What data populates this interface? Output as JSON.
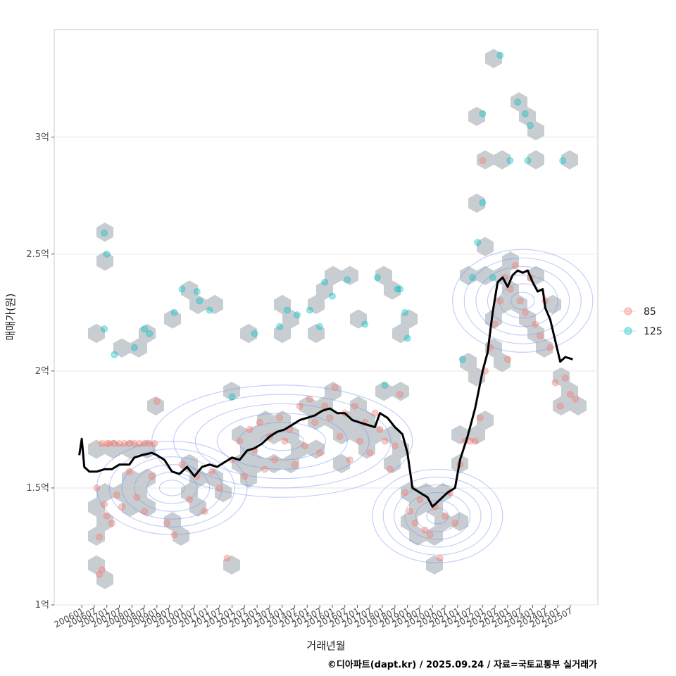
{
  "chart_data": {
    "type": "scatter",
    "xlabel": "거래년월",
    "ylabel": "매매가(원)",
    "caption": "©디아파트(dapt.kr) / 2025.09.24 / 자료=국토교통부 실거래가",
    "x_ticks": [
      "200601",
      "200607",
      "200701",
      "200707",
      "200801",
      "200807",
      "200901",
      "200907",
      "201001",
      "201007",
      "201101",
      "201107",
      "201201",
      "201207",
      "201301",
      "201307",
      "201401",
      "201407",
      "201501",
      "201507",
      "201601",
      "201607",
      "201701",
      "201707",
      "201801",
      "201807",
      "201901",
      "201907",
      "202001",
      "202007",
      "202101",
      "202107",
      "202201",
      "202207",
      "202301",
      "202307",
      "202401",
      "202407",
      "202501",
      "202507"
    ],
    "y_ticks": [
      {
        "value": 1.0,
        "label": "1억"
      },
      {
        "value": 1.5,
        "label": "1.5억"
      },
      {
        "value": 2.0,
        "label": "2억"
      },
      {
        "value": 2.5,
        "label": "2.5억"
      },
      {
        "value": 3.0,
        "label": "3억"
      }
    ],
    "ylim": [
      1.0,
      3.46
    ],
    "xlim": [
      2004.9,
      2026.6
    ],
    "legend": {
      "position": "right",
      "entries": [
        {
          "label": "85",
          "color": "#F8766D"
        },
        {
          "label": "125",
          "color": "#00BFC4"
        }
      ]
    },
    "series": [
      {
        "name": "85",
        "color": "#F8766D",
        "points": [
          [
            2006.8,
            1.69
          ],
          [
            2007.0,
            1.69
          ],
          [
            2007.1,
            1.69
          ],
          [
            2007.3,
            1.69
          ],
          [
            2007.5,
            1.69
          ],
          [
            2007.7,
            1.69
          ],
          [
            2007.9,
            1.69
          ],
          [
            2008.1,
            1.69
          ],
          [
            2008.3,
            1.69
          ],
          [
            2008.5,
            1.69
          ],
          [
            2008.7,
            1.69
          ],
          [
            2008.9,
            1.69
          ],
          [
            2006.6,
            1.5
          ],
          [
            2006.9,
            1.43
          ],
          [
            2007.2,
            1.35
          ],
          [
            2007.4,
            1.47
          ],
          [
            2007.6,
            1.42
          ],
          [
            2007.9,
            1.57
          ],
          [
            2008.2,
            1.46
          ],
          [
            2008.5,
            1.4
          ],
          [
            2008.8,
            1.55
          ],
          [
            2009.0,
            1.87
          ],
          [
            2009.4,
            1.35
          ],
          [
            2006.7,
            1.29
          ],
          [
            2006.8,
            1.15
          ],
          [
            2006.7,
            1.13
          ],
          [
            2007.0,
            1.38
          ],
          [
            2009.7,
            1.3
          ],
          [
            2010.0,
            1.6
          ],
          [
            2010.3,
            1.45
          ],
          [
            2010.6,
            1.55
          ],
          [
            2010.9,
            1.4
          ],
          [
            2011.2,
            1.57
          ],
          [
            2011.5,
            1.5
          ],
          [
            2011.8,
            1.2
          ],
          [
            2012.0,
            1.62
          ],
          [
            2012.3,
            1.7
          ],
          [
            2012.5,
            1.55
          ],
          [
            2012.7,
            1.75
          ],
          [
            2012.9,
            1.66
          ],
          [
            2013.1,
            1.78
          ],
          [
            2013.3,
            1.58
          ],
          [
            2013.5,
            1.72
          ],
          [
            2013.7,
            1.62
          ],
          [
            2013.9,
            1.8
          ],
          [
            2014.1,
            1.7
          ],
          [
            2014.3,
            1.75
          ],
          [
            2014.5,
            1.6
          ],
          [
            2014.7,
            1.85
          ],
          [
            2014.9,
            1.68
          ],
          [
            2015.1,
            1.88
          ],
          [
            2015.3,
            1.78
          ],
          [
            2015.5,
            1.65
          ],
          [
            2015.7,
            1.85
          ],
          [
            2015.9,
            1.8
          ],
          [
            2016.1,
            1.93
          ],
          [
            2016.3,
            1.72
          ],
          [
            2016.5,
            1.82
          ],
          [
            2016.7,
            1.62
          ],
          [
            2016.9,
            1.85
          ],
          [
            2017.1,
            1.7
          ],
          [
            2017.3,
            1.78
          ],
          [
            2017.5,
            1.65
          ],
          [
            2017.7,
            1.82
          ],
          [
            2017.9,
            1.75
          ],
          [
            2018.1,
            1.7
          ],
          [
            2018.3,
            1.58
          ],
          [
            2018.5,
            1.68
          ],
          [
            2018.7,
            1.9
          ],
          [
            2018.9,
            1.48
          ],
          [
            2019.1,
            1.4
          ],
          [
            2019.3,
            1.35
          ],
          [
            2019.5,
            1.45
          ],
          [
            2019.7,
            1.32
          ],
          [
            2019.9,
            1.3
          ],
          [
            2020.1,
            1.42
          ],
          [
            2020.3,
            1.2
          ],
          [
            2020.5,
            1.38
          ],
          [
            2020.7,
            1.48
          ],
          [
            2020.9,
            1.35
          ],
          [
            2021.1,
            1.6
          ],
          [
            2021.3,
            1.7
          ],
          [
            2021.5,
            1.7
          ],
          [
            2021.7,
            1.7
          ],
          [
            2021.9,
            1.8
          ],
          [
            2022.1,
            2.0
          ],
          [
            2022.3,
            2.1
          ],
          [
            2022.5,
            2.2
          ],
          [
            2022.7,
            2.3
          ],
          [
            2022.9,
            2.4
          ],
          [
            2023.1,
            2.35
          ],
          [
            2023.3,
            2.45
          ],
          [
            2023.5,
            2.3
          ],
          [
            2023.7,
            2.25
          ],
          [
            2023.9,
            2.4
          ],
          [
            2024.1,
            2.2
          ],
          [
            2024.3,
            2.15
          ],
          [
            2024.5,
            2.3
          ],
          [
            2024.7,
            2.1
          ],
          [
            2024.9,
            1.95
          ],
          [
            2025.1,
            1.85
          ],
          [
            2025.3,
            1.97
          ],
          [
            2025.5,
            1.9
          ],
          [
            2022.0,
            2.9
          ],
          [
            2023.0,
            2.05
          ],
          [
            2025.7,
            1.88
          ]
        ]
      },
      {
        "name": "125",
        "color": "#00BFC4",
        "points": [
          [
            2006.9,
            2.59
          ],
          [
            2007.0,
            2.5
          ],
          [
            2006.9,
            2.18
          ],
          [
            2007.3,
            2.07
          ],
          [
            2008.1,
            2.1
          ],
          [
            2008.5,
            2.18
          ],
          [
            2008.7,
            2.16
          ],
          [
            2009.7,
            2.25
          ],
          [
            2010.0,
            2.35
          ],
          [
            2010.6,
            2.34
          ],
          [
            2010.7,
            2.3
          ],
          [
            2011.1,
            2.26
          ],
          [
            2012.0,
            1.89
          ],
          [
            2012.9,
            2.16
          ],
          [
            2013.9,
            2.19
          ],
          [
            2014.2,
            2.26
          ],
          [
            2014.6,
            2.24
          ],
          [
            2015.1,
            2.26
          ],
          [
            2015.5,
            2.19
          ],
          [
            2015.7,
            2.38
          ],
          [
            2016.0,
            2.32
          ],
          [
            2016.6,
            2.39
          ],
          [
            2017.3,
            2.2
          ],
          [
            2017.8,
            2.4
          ],
          [
            2018.1,
            1.94
          ],
          [
            2018.6,
            2.35
          ],
          [
            2018.7,
            2.35
          ],
          [
            2018.9,
            2.25
          ],
          [
            2019.0,
            2.14
          ],
          [
            2021.2,
            2.05
          ],
          [
            2021.6,
            2.4
          ],
          [
            2021.8,
            2.55
          ],
          [
            2022.0,
            2.72
          ],
          [
            2022.0,
            3.1
          ],
          [
            2022.4,
            2.4
          ],
          [
            2022.7,
            3.35
          ],
          [
            2023.1,
            2.9
          ],
          [
            2023.4,
            3.15
          ],
          [
            2023.7,
            3.1
          ],
          [
            2023.8,
            2.9
          ],
          [
            2023.9,
            3.05
          ],
          [
            2025.2,
            2.9
          ]
        ]
      }
    ],
    "trend_line": {
      "name": "moving average",
      "color": "#000000",
      "points": [
        [
          2005.9,
          1.64
        ],
        [
          2006.0,
          1.71
        ],
        [
          2006.1,
          1.59
        ],
        [
          2006.3,
          1.57
        ],
        [
          2006.6,
          1.57
        ],
        [
          2006.9,
          1.58
        ],
        [
          2007.2,
          1.58
        ],
        [
          2007.5,
          1.6
        ],
        [
          2007.9,
          1.6
        ],
        [
          2008.1,
          1.63
        ],
        [
          2008.4,
          1.64
        ],
        [
          2008.8,
          1.65
        ],
        [
          2009.0,
          1.64
        ],
        [
          2009.3,
          1.62
        ],
        [
          2009.6,
          1.57
        ],
        [
          2009.9,
          1.56
        ],
        [
          2010.2,
          1.59
        ],
        [
          2010.5,
          1.55
        ],
        [
          2010.8,
          1.59
        ],
        [
          2011.1,
          1.6
        ],
        [
          2011.4,
          1.59
        ],
        [
          2011.7,
          1.61
        ],
        [
          2012.0,
          1.63
        ],
        [
          2012.3,
          1.62
        ],
        [
          2012.6,
          1.66
        ],
        [
          2012.9,
          1.67
        ],
        [
          2013.2,
          1.69
        ],
        [
          2013.5,
          1.72
        ],
        [
          2013.8,
          1.74
        ],
        [
          2014.1,
          1.75
        ],
        [
          2014.4,
          1.77
        ],
        [
          2014.7,
          1.79
        ],
        [
          2015.0,
          1.8
        ],
        [
          2015.3,
          1.81
        ],
        [
          2015.6,
          1.83
        ],
        [
          2015.9,
          1.84
        ],
        [
          2016.2,
          1.82
        ],
        [
          2016.5,
          1.82
        ],
        [
          2016.8,
          1.79
        ],
        [
          2017.1,
          1.78
        ],
        [
          2017.4,
          1.77
        ],
        [
          2017.7,
          1.76
        ],
        [
          2017.9,
          1.82
        ],
        [
          2018.2,
          1.8
        ],
        [
          2018.5,
          1.76
        ],
        [
          2018.8,
          1.73
        ],
        [
          2019.0,
          1.65
        ],
        [
          2019.2,
          1.5
        ],
        [
          2019.5,
          1.48
        ],
        [
          2019.8,
          1.46
        ],
        [
          2020.0,
          1.42
        ],
        [
          2020.3,
          1.45
        ],
        [
          2020.6,
          1.48
        ],
        [
          2020.9,
          1.5
        ],
        [
          2021.1,
          1.62
        ],
        [
          2021.4,
          1.72
        ],
        [
          2021.7,
          1.84
        ],
        [
          2022.0,
          2.0
        ],
        [
          2022.2,
          2.08
        ],
        [
          2022.4,
          2.25
        ],
        [
          2022.6,
          2.38
        ],
        [
          2022.8,
          2.4
        ],
        [
          2023.0,
          2.36
        ],
        [
          2023.2,
          2.41
        ],
        [
          2023.4,
          2.43
        ],
        [
          2023.6,
          2.42
        ],
        [
          2023.8,
          2.43
        ],
        [
          2024.0,
          2.38
        ],
        [
          2024.2,
          2.34
        ],
        [
          2024.4,
          2.35
        ],
        [
          2024.5,
          2.27
        ],
        [
          2024.7,
          2.22
        ],
        [
          2024.9,
          2.13
        ],
        [
          2025.1,
          2.04
        ],
        [
          2025.3,
          2.06
        ],
        [
          2025.6,
          2.05
        ]
      ]
    }
  }
}
